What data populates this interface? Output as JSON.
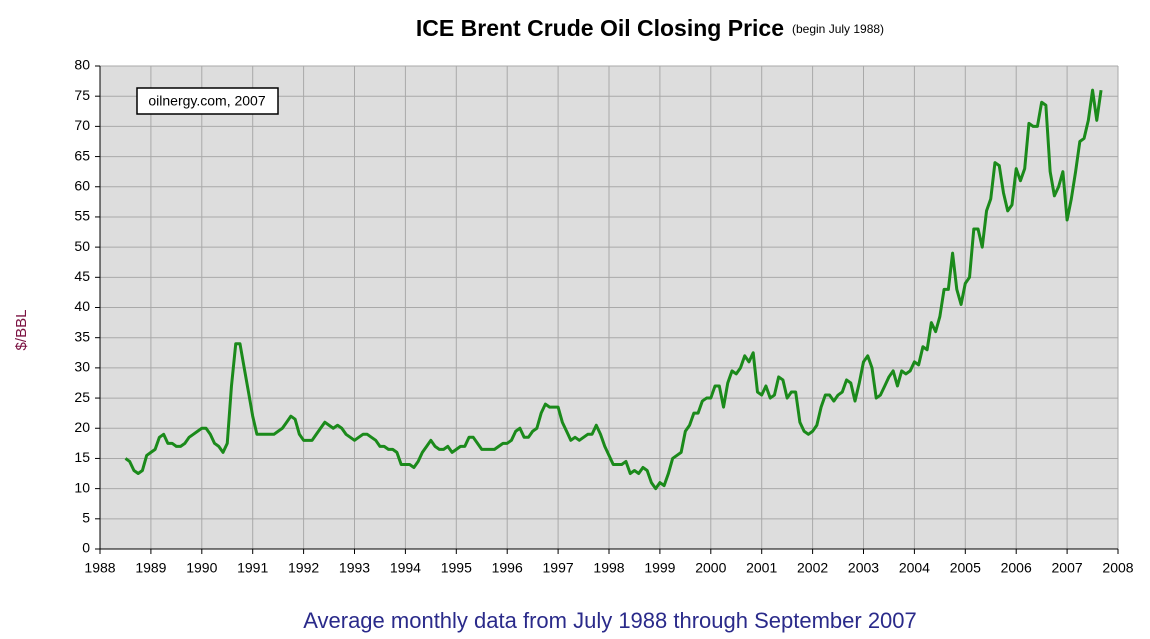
{
  "chart_data": {
    "type": "line",
    "title": "ICE Brent Crude Oil Closing Price",
    "subtitle": "(begin July 1988)",
    "y_label": "$/BBL",
    "x_label": "Average monthly data from July 1988 through September 2007",
    "annotation": "oilnergy.com, 2007",
    "color": "#1b8a1b",
    "grid": true,
    "xlim": [
      1988,
      2008
    ],
    "xticks": [
      1988,
      1989,
      1990,
      1991,
      1992,
      1993,
      1994,
      1995,
      1996,
      1997,
      1998,
      1999,
      2000,
      2001,
      2002,
      2003,
      2004,
      2005,
      2006,
      2007,
      2008
    ],
    "ylim": [
      0,
      80
    ],
    "yticks": [
      0,
      5,
      10,
      15,
      20,
      25,
      30,
      35,
      40,
      45,
      50,
      55,
      60,
      65,
      70,
      75,
      80
    ],
    "x": [
      1988.5,
      1988.583,
      1988.667,
      1988.75,
      1988.833,
      1988.917,
      1989.0,
      1989.083,
      1989.167,
      1989.25,
      1989.333,
      1989.417,
      1989.5,
      1989.583,
      1989.667,
      1989.75,
      1989.833,
      1989.917,
      1990.0,
      1990.083,
      1990.167,
      1990.25,
      1990.333,
      1990.417,
      1990.5,
      1990.583,
      1990.667,
      1990.75,
      1990.833,
      1990.917,
      1991.0,
      1991.083,
      1991.167,
      1991.25,
      1991.333,
      1991.417,
      1991.5,
      1991.583,
      1991.667,
      1991.75,
      1991.833,
      1991.917,
      1992.0,
      1992.083,
      1992.167,
      1992.25,
      1992.333,
      1992.417,
      1992.5,
      1992.583,
      1992.667,
      1992.75,
      1992.833,
      1992.917,
      1993.0,
      1993.083,
      1993.167,
      1993.25,
      1993.333,
      1993.417,
      1993.5,
      1993.583,
      1993.667,
      1993.75,
      1993.833,
      1993.917,
      1994.0,
      1994.083,
      1994.167,
      1994.25,
      1994.333,
      1994.417,
      1994.5,
      1994.583,
      1994.667,
      1994.75,
      1994.833,
      1994.917,
      1995.0,
      1995.083,
      1995.167,
      1995.25,
      1995.333,
      1995.417,
      1995.5,
      1995.583,
      1995.667,
      1995.75,
      1995.833,
      1995.917,
      1996.0,
      1996.083,
      1996.167,
      1996.25,
      1996.333,
      1996.417,
      1996.5,
      1996.583,
      1996.667,
      1996.75,
      1996.833,
      1996.917,
      1997.0,
      1997.083,
      1997.167,
      1997.25,
      1997.333,
      1997.417,
      1997.5,
      1997.583,
      1997.667,
      1997.75,
      1997.833,
      1997.917,
      1998.0,
      1998.083,
      1998.167,
      1998.25,
      1998.333,
      1998.417,
      1998.5,
      1998.583,
      1998.667,
      1998.75,
      1998.833,
      1998.917,
      1999.0,
      1999.083,
      1999.167,
      1999.25,
      1999.333,
      1999.417,
      1999.5,
      1999.583,
      1999.667,
      1999.75,
      1999.833,
      1999.917,
      2000.0,
      2000.083,
      2000.167,
      2000.25,
      2000.333,
      2000.417,
      2000.5,
      2000.583,
      2000.667,
      2000.75,
      2000.833,
      2000.917,
      2001.0,
      2001.083,
      2001.167,
      2001.25,
      2001.333,
      2001.417,
      2001.5,
      2001.583,
      2001.667,
      2001.75,
      2001.833,
      2001.917,
      2002.0,
      2002.083,
      2002.167,
      2002.25,
      2002.333,
      2002.417,
      2002.5,
      2002.583,
      2002.667,
      2002.75,
      2002.833,
      2002.917,
      2003.0,
      2003.083,
      2003.167,
      2003.25,
      2003.333,
      2003.417,
      2003.5,
      2003.583,
      2003.667,
      2003.75,
      2003.833,
      2003.917,
      2004.0,
      2004.083,
      2004.167,
      2004.25,
      2004.333,
      2004.417,
      2004.5,
      2004.583,
      2004.667,
      2004.75,
      2004.833,
      2004.917,
      2005.0,
      2005.083,
      2005.167,
      2005.25,
      2005.333,
      2005.417,
      2005.5,
      2005.583,
      2005.667,
      2005.75,
      2005.833,
      2005.917,
      2006.0,
      2006.083,
      2006.167,
      2006.25,
      2006.333,
      2006.417,
      2006.5,
      2006.583,
      2006.667,
      2006.75,
      2006.833,
      2006.917,
      2007.0,
      2007.083,
      2007.167,
      2007.25,
      2007.333,
      2007.417,
      2007.5,
      2007.583,
      2007.667
    ],
    "values": [
      15,
      14.5,
      13,
      12.5,
      13,
      15.5,
      16,
      16.5,
      18.5,
      19,
      17.5,
      17.5,
      17,
      17,
      17.5,
      18.5,
      19,
      19.5,
      20,
      20,
      19,
      17.5,
      17,
      16,
      17.5,
      27,
      34,
      34,
      30,
      26,
      22,
      19,
      19,
      19,
      19,
      19,
      19.5,
      20,
      21,
      22,
      21.5,
      19,
      18,
      18,
      18,
      19,
      20,
      21,
      20.5,
      20,
      20.5,
      20,
      19,
      18.5,
      18,
      18.5,
      19,
      19,
      18.5,
      18,
      17,
      17,
      16.5,
      16.5,
      16,
      14,
      14,
      14,
      13.5,
      14.5,
      16,
      17,
      18,
      17,
      16.5,
      16.5,
      17,
      16,
      16.5,
      17,
      17,
      18.5,
      18.5,
      17.5,
      16.5,
      16.5,
      16.5,
      16.5,
      17,
      17.5,
      17.5,
      18,
      19.5,
      20,
      18.5,
      18.5,
      19.5,
      20,
      22.5,
      24,
      23.5,
      23.5,
      23.5,
      21,
      19.5,
      18,
      18.5,
      18,
      18.5,
      19,
      19,
      20.5,
      19,
      17,
      15.5,
      14,
      14,
      14,
      14.5,
      12.5,
      13,
      12.5,
      13.5,
      13,
      11,
      10,
      11,
      10.5,
      12.5,
      15,
      15.5,
      16,
      19.5,
      20.5,
      22.5,
      22.5,
      24.5,
      25,
      25,
      27,
      27,
      23.5,
      27.5,
      29.5,
      29,
      30,
      32,
      31,
      32.5,
      26,
      25.5,
      27,
      25,
      25.5,
      28.5,
      28,
      25,
      26,
      26,
      21,
      19.5,
      19,
      19.5,
      20.5,
      23.5,
      25.5,
      25.5,
      24.5,
      25.5,
      26,
      28,
      27.5,
      24.5,
      27.5,
      31,
      32,
      30,
      25,
      25.5,
      27,
      28.5,
      29.5,
      27,
      29.5,
      29,
      29.5,
      31,
      30.5,
      33.5,
      33,
      37.5,
      36,
      38.5,
      43,
      43,
      49,
      43,
      40.5,
      44,
      45,
      53,
      53,
      50,
      56,
      58,
      64,
      63.5,
      59,
      56,
      57,
      63,
      61,
      63,
      70.5,
      70,
      70,
      74,
      73.5,
      62.5,
      58.5,
      60,
      62.5,
      54.5,
      58,
      62.5,
      67.5,
      68,
      71,
      76,
      71,
      76
    ]
  }
}
